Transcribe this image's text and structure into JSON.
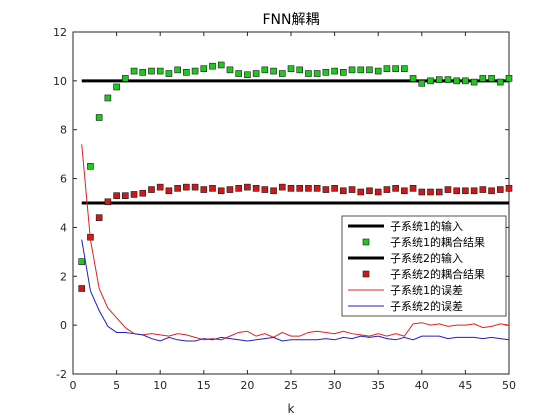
{
  "chart_data": {
    "type": "line",
    "title": "FNN解耦",
    "xlabel": "k",
    "ylabel": "",
    "xlim": [
      0,
      50
    ],
    "ylim": [
      -2,
      12
    ],
    "xticks": [
      0,
      5,
      10,
      15,
      20,
      25,
      30,
      35,
      40,
      45,
      50
    ],
    "yticks": [
      -2,
      0,
      2,
      4,
      6,
      8,
      10,
      12
    ],
    "grid": false,
    "legend_position": "right",
    "colors": {
      "input": "#000000",
      "coupled1": "#1fc71f",
      "coupled2": "#cc1a1a",
      "error1": "#e02020",
      "error2": "#2020c0"
    },
    "series": [
      {
        "name": "子系统1的输入",
        "style": "line",
        "x": [
          1,
          50
        ],
        "y": [
          10,
          10
        ]
      },
      {
        "name": "子系统1的耦合结果",
        "style": "marker",
        "x": [
          1,
          2,
          3,
          4,
          5,
          6,
          7,
          8,
          9,
          10,
          11,
          12,
          13,
          14,
          15,
          16,
          17,
          18,
          19,
          20,
          21,
          22,
          23,
          24,
          25,
          26,
          27,
          28,
          29,
          30,
          31,
          32,
          33,
          34,
          35,
          36,
          37,
          38,
          39,
          40,
          41,
          42,
          43,
          44,
          45,
          46,
          47,
          48,
          49,
          50
        ],
        "y": [
          2.6,
          6.5,
          8.5,
          9.3,
          9.75,
          10.1,
          10.4,
          10.35,
          10.4,
          10.4,
          10.3,
          10.45,
          10.35,
          10.4,
          10.5,
          10.6,
          10.65,
          10.45,
          10.3,
          10.25,
          10.3,
          10.45,
          10.4,
          10.3,
          10.5,
          10.45,
          10.3,
          10.3,
          10.35,
          10.4,
          10.35,
          10.45,
          10.45,
          10.45,
          10.4,
          10.5,
          10.5,
          10.5,
          10.1,
          9.9,
          10.0,
          10.05,
          10.05,
          10.0,
          10.0,
          9.95,
          10.1,
          10.1,
          9.95,
          10.1
        ]
      },
      {
        "name": "子系统2的输入",
        "style": "line",
        "x": [
          1,
          50
        ],
        "y": [
          5,
          5
        ]
      },
      {
        "name": "子系统2的耦合结果",
        "style": "marker",
        "x": [
          1,
          2,
          3,
          4,
          5,
          6,
          7,
          8,
          9,
          10,
          11,
          12,
          13,
          14,
          15,
          16,
          17,
          18,
          19,
          20,
          21,
          22,
          23,
          24,
          25,
          26,
          27,
          28,
          29,
          30,
          31,
          32,
          33,
          34,
          35,
          36,
          37,
          38,
          39,
          40,
          41,
          42,
          43,
          44,
          45,
          46,
          47,
          48,
          49,
          50
        ],
        "y": [
          1.5,
          3.6,
          4.4,
          5.05,
          5.3,
          5.3,
          5.35,
          5.4,
          5.55,
          5.65,
          5.5,
          5.6,
          5.65,
          5.65,
          5.55,
          5.6,
          5.5,
          5.55,
          5.6,
          5.65,
          5.6,
          5.55,
          5.5,
          5.65,
          5.6,
          5.6,
          5.6,
          5.6,
          5.55,
          5.6,
          5.5,
          5.55,
          5.45,
          5.5,
          5.45,
          5.55,
          5.6,
          5.5,
          5.6,
          5.45,
          5.45,
          5.45,
          5.55,
          5.5,
          5.5,
          5.5,
          5.55,
          5.5,
          5.55,
          5.6
        ]
      },
      {
        "name": "子系统1的误差",
        "style": "line",
        "x": [
          1,
          2,
          3,
          4,
          5,
          6,
          7,
          8,
          9,
          10,
          11,
          12,
          13,
          14,
          15,
          16,
          17,
          18,
          19,
          20,
          21,
          22,
          23,
          24,
          25,
          26,
          27,
          28,
          29,
          30,
          31,
          32,
          33,
          34,
          35,
          36,
          37,
          38,
          39,
          40,
          41,
          42,
          43,
          44,
          45,
          46,
          47,
          48,
          49,
          50
        ],
        "y": [
          7.4,
          3.5,
          1.5,
          0.7,
          0.3,
          -0.1,
          -0.35,
          -0.4,
          -0.35,
          -0.4,
          -0.45,
          -0.35,
          -0.4,
          -0.5,
          -0.6,
          -0.55,
          -0.6,
          -0.45,
          -0.3,
          -0.25,
          -0.45,
          -0.35,
          -0.5,
          -0.3,
          -0.45,
          -0.45,
          -0.3,
          -0.25,
          -0.3,
          -0.35,
          -0.25,
          -0.35,
          -0.4,
          -0.45,
          -0.35,
          -0.45,
          -0.35,
          -0.45,
          0.05,
          0.1,
          0.0,
          0.05,
          -0.05,
          0.0,
          0.0,
          0.05,
          -0.1,
          -0.05,
          0.05,
          0.0
        ]
      },
      {
        "name": "子系统2的误差",
        "style": "line",
        "x": [
          1,
          2,
          3,
          4,
          5,
          6,
          7,
          8,
          9,
          10,
          11,
          12,
          13,
          14,
          15,
          16,
          17,
          18,
          19,
          20,
          21,
          22,
          23,
          24,
          25,
          26,
          27,
          28,
          29,
          30,
          31,
          32,
          33,
          34,
          35,
          36,
          37,
          38,
          39,
          40,
          41,
          42,
          43,
          44,
          45,
          46,
          47,
          48,
          49,
          50
        ],
        "y": [
          3.5,
          1.4,
          0.6,
          -0.05,
          -0.3,
          -0.3,
          -0.35,
          -0.4,
          -0.55,
          -0.65,
          -0.5,
          -0.6,
          -0.65,
          -0.65,
          -0.55,
          -0.6,
          -0.5,
          -0.55,
          -0.6,
          -0.65,
          -0.6,
          -0.55,
          -0.5,
          -0.65,
          -0.6,
          -0.6,
          -0.6,
          -0.6,
          -0.55,
          -0.6,
          -0.5,
          -0.55,
          -0.45,
          -0.5,
          -0.45,
          -0.55,
          -0.6,
          -0.5,
          -0.6,
          -0.45,
          -0.45,
          -0.45,
          -0.55,
          -0.5,
          -0.5,
          -0.5,
          -0.55,
          -0.5,
          -0.55,
          -0.6
        ]
      }
    ]
  }
}
